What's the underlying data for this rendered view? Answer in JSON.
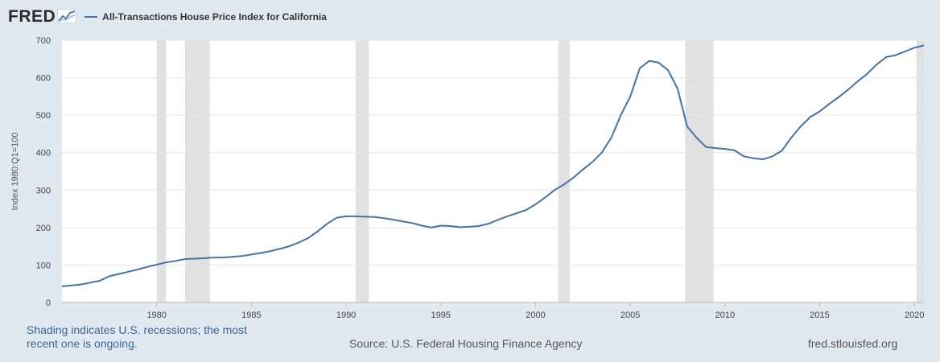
{
  "header": {
    "logo": "FRED",
    "logo_icon": "line-graph-icon",
    "series_title": "All-Transactions House Price Index for California"
  },
  "colors": {
    "series": "#4572a7",
    "recession": "#e1e1e1",
    "background": "#e1e9f0",
    "plot": "#ffffff",
    "grid": "#e6e6e6"
  },
  "footer": {
    "recession_note": "Shading indicates U.S. recessions; the most recent one is ongoing.",
    "source": "Source: U.S. Federal Housing Finance Agency",
    "site": "fred.stlouisfed.org"
  },
  "chart_data": {
    "type": "line",
    "ylabel": "Index 1980:Q1=100",
    "xlim": [
      1975.0,
      2020.5
    ],
    "ylim": [
      0,
      700
    ],
    "xticks": [
      1980,
      1985,
      1990,
      1995,
      2000,
      2005,
      2010,
      2015,
      2020
    ],
    "yticks": [
      0,
      100,
      200,
      300,
      400,
      500,
      600,
      700
    ],
    "grid": true,
    "legend": "top-left",
    "recessions": [
      [
        1980.0,
        1980.5
      ],
      [
        1981.5,
        1982.8
      ],
      [
        1990.5,
        1991.2
      ],
      [
        2001.2,
        2001.8
      ],
      [
        2007.9,
        2009.4
      ],
      [
        2020.1,
        2020.5
      ]
    ],
    "series": [
      {
        "name": "All-Transactions House Price Index for California",
        "x": [
          1975.0,
          1976.0,
          1976.5,
          1977.0,
          1977.5,
          1978.0,
          1978.5,
          1979.0,
          1979.5,
          1980.0,
          1980.5,
          1981.0,
          1981.5,
          1982.0,
          1982.5,
          1983.0,
          1983.5,
          1984.0,
          1984.5,
          1985.0,
          1985.5,
          1986.0,
          1986.5,
          1987.0,
          1987.5,
          1988.0,
          1988.5,
          1989.0,
          1989.5,
          1990.0,
          1990.5,
          1991.0,
          1991.5,
          1992.0,
          1992.5,
          1993.0,
          1993.5,
          1994.0,
          1994.5,
          1995.0,
          1995.5,
          1996.0,
          1996.5,
          1997.0,
          1997.5,
          1998.0,
          1998.5,
          1999.0,
          1999.5,
          2000.0,
          2000.5,
          2001.0,
          2001.5,
          2002.0,
          2002.5,
          2003.0,
          2003.5,
          2004.0,
          2004.5,
          2005.0,
          2005.5,
          2006.0,
          2006.5,
          2007.0,
          2007.5,
          2008.0,
          2008.5,
          2009.0,
          2009.5,
          2010.0,
          2010.5,
          2011.0,
          2011.5,
          2012.0,
          2012.5,
          2013.0,
          2013.5,
          2014.0,
          2014.5,
          2015.0,
          2015.5,
          2016.0,
          2016.5,
          2017.0,
          2017.5,
          2018.0,
          2018.5,
          2019.0,
          2019.5,
          2020.0,
          2020.5
        ],
        "values": [
          43,
          48,
          53,
          58,
          70,
          76,
          82,
          88,
          95,
          101,
          107,
          111,
          116,
          117,
          118,
          120,
          120,
          122,
          124,
          128,
          132,
          137,
          143,
          150,
          160,
          172,
          190,
          210,
          226,
          230,
          230,
          229,
          228,
          225,
          221,
          216,
          212,
          205,
          200,
          205,
          204,
          201,
          202,
          204,
          210,
          220,
          230,
          238,
          247,
          262,
          280,
          300,
          315,
          333,
          355,
          375,
          400,
          440,
          500,
          550,
          625,
          645,
          640,
          620,
          570,
          470,
          440,
          415,
          412,
          410,
          406,
          390,
          385,
          382,
          390,
          405,
          440,
          470,
          495,
          510,
          530,
          548,
          568,
          590,
          610,
          635,
          655,
          660,
          670,
          680,
          686
        ]
      }
    ]
  }
}
